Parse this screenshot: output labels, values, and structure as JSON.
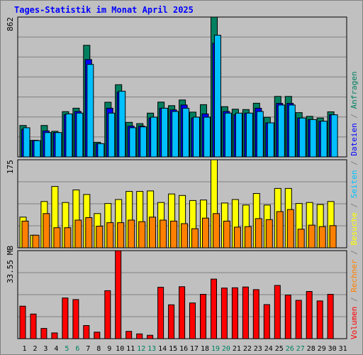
{
  "title": "Tages-Statistik im Monat April 2025",
  "chart_data": [
    {
      "type": "bar",
      "categories": [
        "1",
        "2",
        "3",
        "4",
        "5",
        "6",
        "7",
        "8",
        "9",
        "10",
        "11",
        "12",
        "13",
        "14",
        "15",
        "16",
        "17",
        "18",
        "19",
        "20",
        "21",
        "22",
        "23",
        "24",
        "25",
        "26",
        "27",
        "28",
        "29",
        "30",
        "31"
      ],
      "y_max_label": "862",
      "ylim": [
        0,
        862
      ],
      "series": [
        {
          "name": "Anfragen",
          "color": "#008060",
          "values": [
            194,
            102,
            194,
            158,
            279,
            300,
            688,
            90,
            337,
            445,
            213,
            205,
            270,
            338,
            316,
            351,
            276,
            322,
            862,
            310,
            294,
            292,
            331,
            244,
            373,
            373,
            273,
            250,
            240,
            278,
            0
          ]
        },
        {
          "name": "Dateien",
          "color": "#0000ff",
          "values": [
            170,
            102,
            160,
            150,
            260,
            280,
            600,
            82,
            300,
            400,
            190,
            190,
            240,
            300,
            290,
            320,
            240,
            265,
            700,
            280,
            260,
            270,
            300,
            210,
            330,
            330,
            240,
            230,
            220,
            260,
            0
          ]
        },
        {
          "name": "Seiten",
          "color": "#00c0ff",
          "values": [
            180,
            100,
            150,
            150,
            265,
            270,
            570,
            82,
            270,
            405,
            180,
            185,
            245,
            300,
            280,
            300,
            245,
            245,
            750,
            270,
            270,
            270,
            280,
            210,
            320,
            320,
            240,
            230,
            220,
            260,
            0
          ]
        }
      ]
    },
    {
      "type": "bar",
      "categories": [
        "1",
        "2",
        "3",
        "4",
        "5",
        "6",
        "7",
        "8",
        "9",
        "10",
        "11",
        "12",
        "13",
        "14",
        "15",
        "16",
        "17",
        "18",
        "19",
        "20",
        "21",
        "22",
        "23",
        "24",
        "25",
        "26",
        "27",
        "28",
        "29",
        "30",
        "31"
      ],
      "y_max_label": "175",
      "ylim": [
        0,
        175
      ],
      "series": [
        {
          "name": "Besuche",
          "color": "#ffff00",
          "values": [
            61,
            25,
            92,
            122,
            90,
            115,
            106,
            68,
            88,
            96,
            112,
            112,
            113,
            90,
            107,
            104,
            94,
            95,
            175,
            89,
            96,
            85,
            108,
            85,
            118,
            118,
            88,
            90,
            86,
            92,
            0
          ]
        },
        {
          "name": "Rechner",
          "color": "#ff8000",
          "values": [
            53,
            25,
            68,
            40,
            40,
            55,
            60,
            43,
            50,
            50,
            55,
            52,
            61,
            55,
            53,
            48,
            38,
            59,
            68,
            53,
            41,
            42,
            58,
            56,
            72,
            76,
            37,
            45,
            42,
            44,
            0
          ]
        }
      ]
    },
    {
      "type": "bar",
      "categories": [
        "1",
        "2",
        "3",
        "4",
        "5",
        "6",
        "7",
        "8",
        "9",
        "10",
        "11",
        "12",
        "13",
        "14",
        "15",
        "16",
        "17",
        "18",
        "19",
        "20",
        "21",
        "22",
        "23",
        "24",
        "25",
        "26",
        "27",
        "28",
        "29",
        "30",
        "31"
      ],
      "y_max_label": "33.55 MB",
      "ylim": [
        0,
        33.55
      ],
      "series": [
        {
          "name": "Volumen",
          "color": "#ff0000",
          "values": [
            12.4,
            9.4,
            3.9,
            2.2,
            15.5,
            14.9,
            5.0,
            2.5,
            18.3,
            33.55,
            2.8,
            1.8,
            1.3,
            19.6,
            12.9,
            19.8,
            13.6,
            16.9,
            22.7,
            19.3,
            19.4,
            19.7,
            18.7,
            13.0,
            20.3,
            16.6,
            14.6,
            18.0,
            14.4,
            16.9,
            0
          ]
        }
      ]
    }
  ],
  "x_axis": {
    "labels": [
      "1",
      "2",
      "3",
      "4",
      "5",
      "6",
      "7",
      "8",
      "9",
      "10",
      "11",
      "12",
      "13",
      "14",
      "15",
      "16",
      "17",
      "18",
      "19",
      "20",
      "21",
      "22",
      "23",
      "24",
      "25",
      "26",
      "27",
      "28",
      "29",
      "30",
      "31"
    ],
    "weekend_days": [
      "5",
      "6",
      "12",
      "13",
      "19",
      "20",
      "26",
      "27"
    ],
    "weekday_color": "#000000",
    "weekend_color": "#008060"
  },
  "legend": {
    "items": [
      {
        "text": "Volumen",
        "color": "#ff0000"
      },
      {
        "text": " / ",
        "color": "#808080"
      },
      {
        "text": "Rechner",
        "color": "#ff8000"
      },
      {
        "text": " / ",
        "color": "#808080"
      },
      {
        "text": "Besuche",
        "color": "#ffff00"
      },
      {
        "text": " / ",
        "color": "#808080"
      },
      {
        "text": "Seiten",
        "color": "#00c0ff"
      },
      {
        "text": " / ",
        "color": "#808080"
      },
      {
        "text": "Dateien",
        "color": "#0000ff"
      },
      {
        "text": " / ",
        "color": "#808080"
      },
      {
        "text": "Anfragen",
        "color": "#008060"
      }
    ]
  }
}
